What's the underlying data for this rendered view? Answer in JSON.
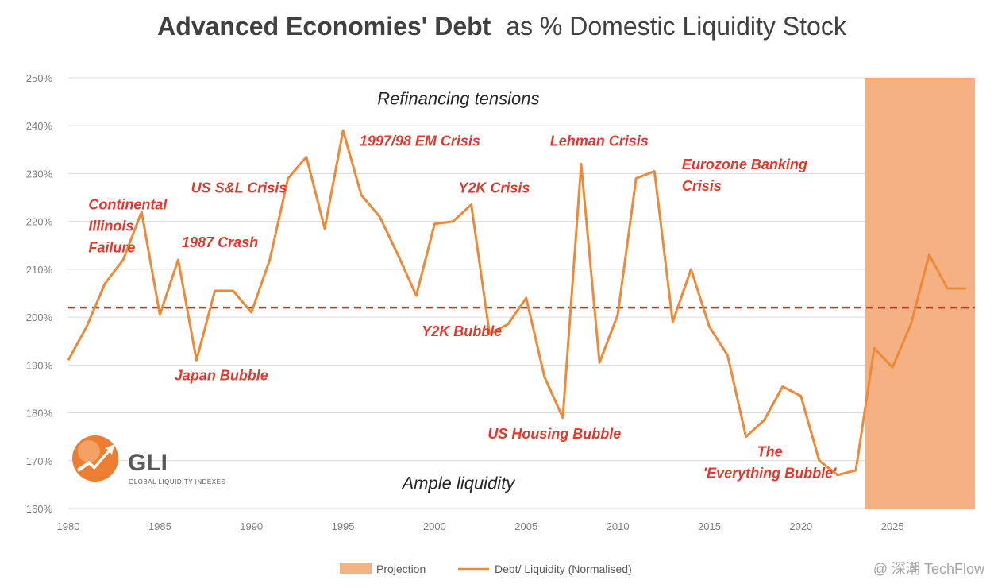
{
  "title_bold": "Advanced Economies' Debt",
  "title_rest": "as % Domestic Liquidity Stock",
  "logo": {
    "name": "GLI",
    "tagline": "GLOBAL LIQUIDITY INDEXES"
  },
  "watermark": "@ 深潮 TechFlow",
  "colors": {
    "line": "#ed8a3a",
    "projection": "#f4b183",
    "threshold": "#c0392b",
    "annotation": "#e03a2e",
    "grid": "#d9d9d9"
  },
  "chart_data": {
    "type": "line",
    "title": "Advanced Economies' Debt as % Domestic Liquidity Stock",
    "xlim": [
      1980,
      2029.5
    ],
    "ylim": [
      160,
      250
    ],
    "y_ticks": [
      "160%",
      "170%",
      "180%",
      "190%",
      "200%",
      "210%",
      "220%",
      "230%",
      "240%",
      "250%"
    ],
    "y_tick_values": [
      160,
      170,
      180,
      190,
      200,
      210,
      220,
      230,
      240,
      250
    ],
    "x_ticks": [
      "1980",
      "1985",
      "1990",
      "1995",
      "2000",
      "2005",
      "2010",
      "2015",
      "2020",
      "2025"
    ],
    "x_tick_values": [
      1980,
      1985,
      1990,
      1995,
      2000,
      2005,
      2010,
      2015,
      2020,
      2025
    ],
    "grid": "horizontal",
    "threshold": 202,
    "projection_range": [
      2023.5,
      2029.5
    ],
    "series": [
      {
        "name": "Debt/ Liquidity (Normalised)",
        "x": [
          1980,
          1981,
          1982,
          1983,
          1984,
          1985,
          1986,
          1987,
          1988,
          1989,
          1990,
          1991,
          1992,
          1993,
          1994,
          1995,
          1996,
          1997,
          1998,
          1999,
          2000,
          2001,
          2002,
          2003,
          2004,
          2005,
          2006,
          2007,
          2008,
          2009,
          2010,
          2011,
          2012,
          2013,
          2014,
          2015,
          2016,
          2017,
          2018,
          2019,
          2020,
          2021,
          2022,
          2023,
          2024,
          2025,
          2026,
          2027,
          2028,
          2029
        ],
        "values": [
          191,
          198,
          207,
          212,
          222,
          200.5,
          212,
          191,
          205.5,
          205.5,
          201,
          212,
          229,
          233.5,
          218.5,
          239,
          225.5,
          221,
          213,
          204.5,
          219.5,
          220,
          223.5,
          196.5,
          198.5,
          204,
          187.5,
          179,
          232,
          190.5,
          200.5,
          229,
          230.5,
          199,
          210,
          198,
          192,
          175,
          178.5,
          185.5,
          183.5,
          170,
          167,
          168,
          193.5,
          189.5,
          198.5,
          213,
          206,
          206
        ]
      }
    ],
    "legend": {
      "position": "bottom",
      "entries": [
        "Projection",
        "Debt/ Liquidity (Normalised)"
      ]
    },
    "annotations": [
      {
        "text": [
          "Continental",
          "Illinois",
          "Failure"
        ],
        "x": 1981.1,
        "y": 222.5,
        "anchor": "start"
      },
      {
        "text": [
          "US S&L Crisis"
        ],
        "x": 1986.7,
        "y": 226.0,
        "anchor": "start"
      },
      {
        "text": [
          "1987 Crash"
        ],
        "x": 1986.2,
        "y": 214.6,
        "anchor": "start"
      },
      {
        "text": [
          "Japan Bubble"
        ],
        "x": 1985.8,
        "y": 186.8,
        "anchor": "start"
      },
      {
        "text": [
          "1997/98 EM Crisis"
        ],
        "x": 1995.9,
        "y": 235.8,
        "anchor": "start"
      },
      {
        "text": [
          "Y2K Crisis"
        ],
        "x": 2001.3,
        "y": 226.0,
        "anchor": "start"
      },
      {
        "text": [
          "Y2K Bubble"
        ],
        "x": 1999.3,
        "y": 196.0,
        "anchor": "start"
      },
      {
        "text": [
          "Lehman Crisis"
        ],
        "x": 2006.3,
        "y": 235.8,
        "anchor": "start"
      },
      {
        "text": [
          "US Housing Bubble"
        ],
        "x": 2002.9,
        "y": 174.6,
        "anchor": "start"
      },
      {
        "text": [
          "Eurozone Banking",
          "Crisis"
        ],
        "x": 2013.5,
        "y": 230.9,
        "anchor": "start"
      },
      {
        "text": [
          "The",
          "'Everything Bubble'"
        ],
        "x": 2018.3,
        "y": 170.9,
        "anchor": "middle"
      }
    ],
    "region_labels": [
      {
        "text": "Refinancing tensions",
        "x": 2001.3,
        "y": 244.4
      },
      {
        "text": "Ample liquidity",
        "x": 2001.3,
        "y": 164.1
      }
    ]
  }
}
